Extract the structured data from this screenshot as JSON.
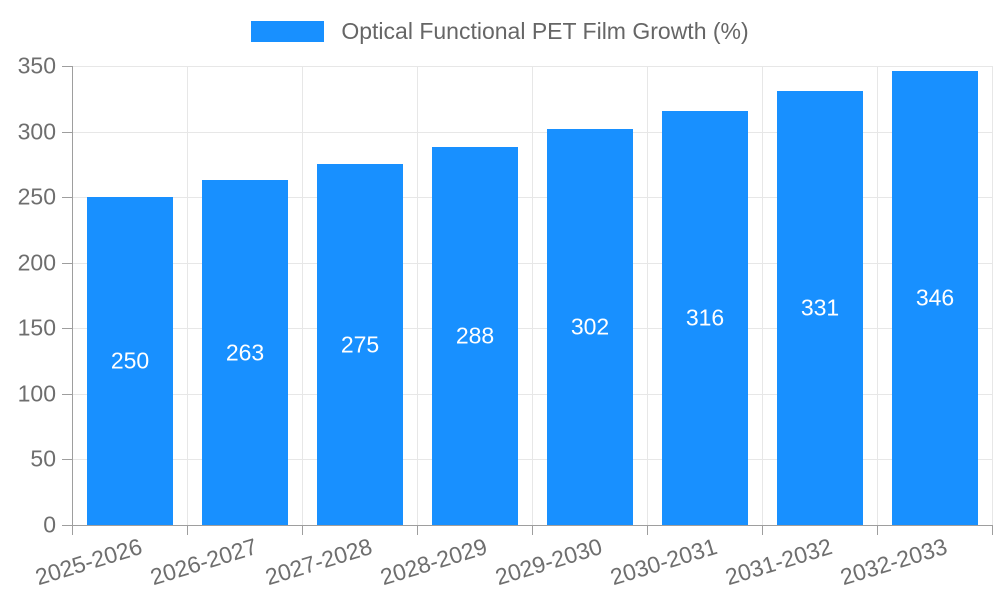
{
  "chart_data": {
    "type": "bar",
    "title": "Optical Functional PET Film Growth (%)",
    "legend": [
      "Optical Functional PET Film Growth (%)"
    ],
    "legend_position": "top-center",
    "categories": [
      "2025-2026",
      "2026-2027",
      "2027-2028",
      "2028-2029",
      "2029-2030",
      "2030-2031",
      "2031-2032",
      "2032-2033"
    ],
    "values": [
      250,
      263,
      275,
      288,
      302,
      316,
      331,
      346
    ],
    "xlabel": "",
    "ylabel": "",
    "ylim": [
      0,
      350
    ],
    "yticks": [
      0,
      50,
      100,
      150,
      200,
      250,
      300,
      350
    ],
    "grid": true,
    "x_label_rotation_deg": -17,
    "colors": {
      "bar": "#1890ff",
      "grid": "#e7e7e7",
      "axis": "#9e9e9e",
      "tick_text": "#6e6e6e",
      "legend_text": "#666666",
      "bar_value_text": "#ffffff",
      "background": "#ffffff"
    }
  }
}
